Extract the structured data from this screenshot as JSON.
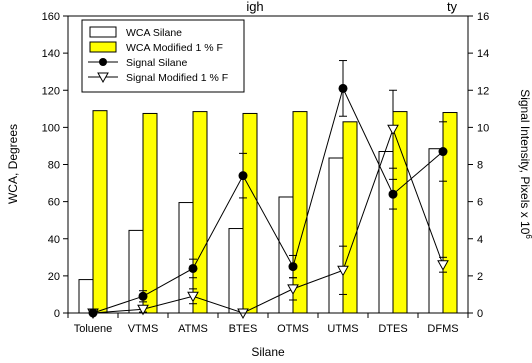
{
  "chart_data": {
    "type": "bar",
    "title": "igh",
    "title_right": "ty",
    "categories": [
      "Toluene",
      "VTMS",
      "ATMS",
      "BTES",
      "OTMS",
      "UTMS",
      "DTES",
      "DFMS"
    ],
    "xlabel": "Silane",
    "ylabel": "WCA, Degrees",
    "y2label": "Signal Intensity, Pixels x 10",
    "y2label_sup": "6",
    "ylim": [
      0,
      160
    ],
    "y2lim": [
      0,
      16
    ],
    "yticks": [
      0,
      20,
      40,
      60,
      80,
      100,
      120,
      140,
      160
    ],
    "y2ticks": [
      0,
      2,
      4,
      6,
      8,
      10,
      12,
      14,
      16
    ],
    "legend_position": "top-left",
    "bar_series": [
      {
        "name": "WCA Silane",
        "values": [
          18,
          44.5,
          59.5,
          45.5,
          62.5,
          83.5,
          87,
          88.5
        ],
        "color": "#ffffff"
      },
      {
        "name": "WCA Modified 1 % F",
        "values": [
          109,
          107.5,
          108.5,
          107.5,
          108.5,
          103,
          108.5,
          108
        ],
        "color": "#ffff00"
      }
    ],
    "line_series": [
      {
        "name": "Signal Silane",
        "axis": "right",
        "marker": "filled-circle",
        "values": [
          0,
          0.9,
          2.4,
          7.4,
          2.5,
          12.1,
          6.4,
          8.7
        ],
        "error": [
          0.2,
          0.3,
          0.5,
          1.2,
          0.6,
          1.5,
          0.8,
          1.6
        ]
      },
      {
        "name": "Signal Modified 1 % F",
        "axis": "right",
        "marker": "open-triangle-down",
        "values": [
          0,
          0.2,
          0.9,
          0,
          1.3,
          2.3,
          9.9,
          2.6
        ],
        "error": [
          0.1,
          0.15,
          0.4,
          0.1,
          0.6,
          1.3,
          2.1,
          0.4
        ]
      }
    ]
  }
}
